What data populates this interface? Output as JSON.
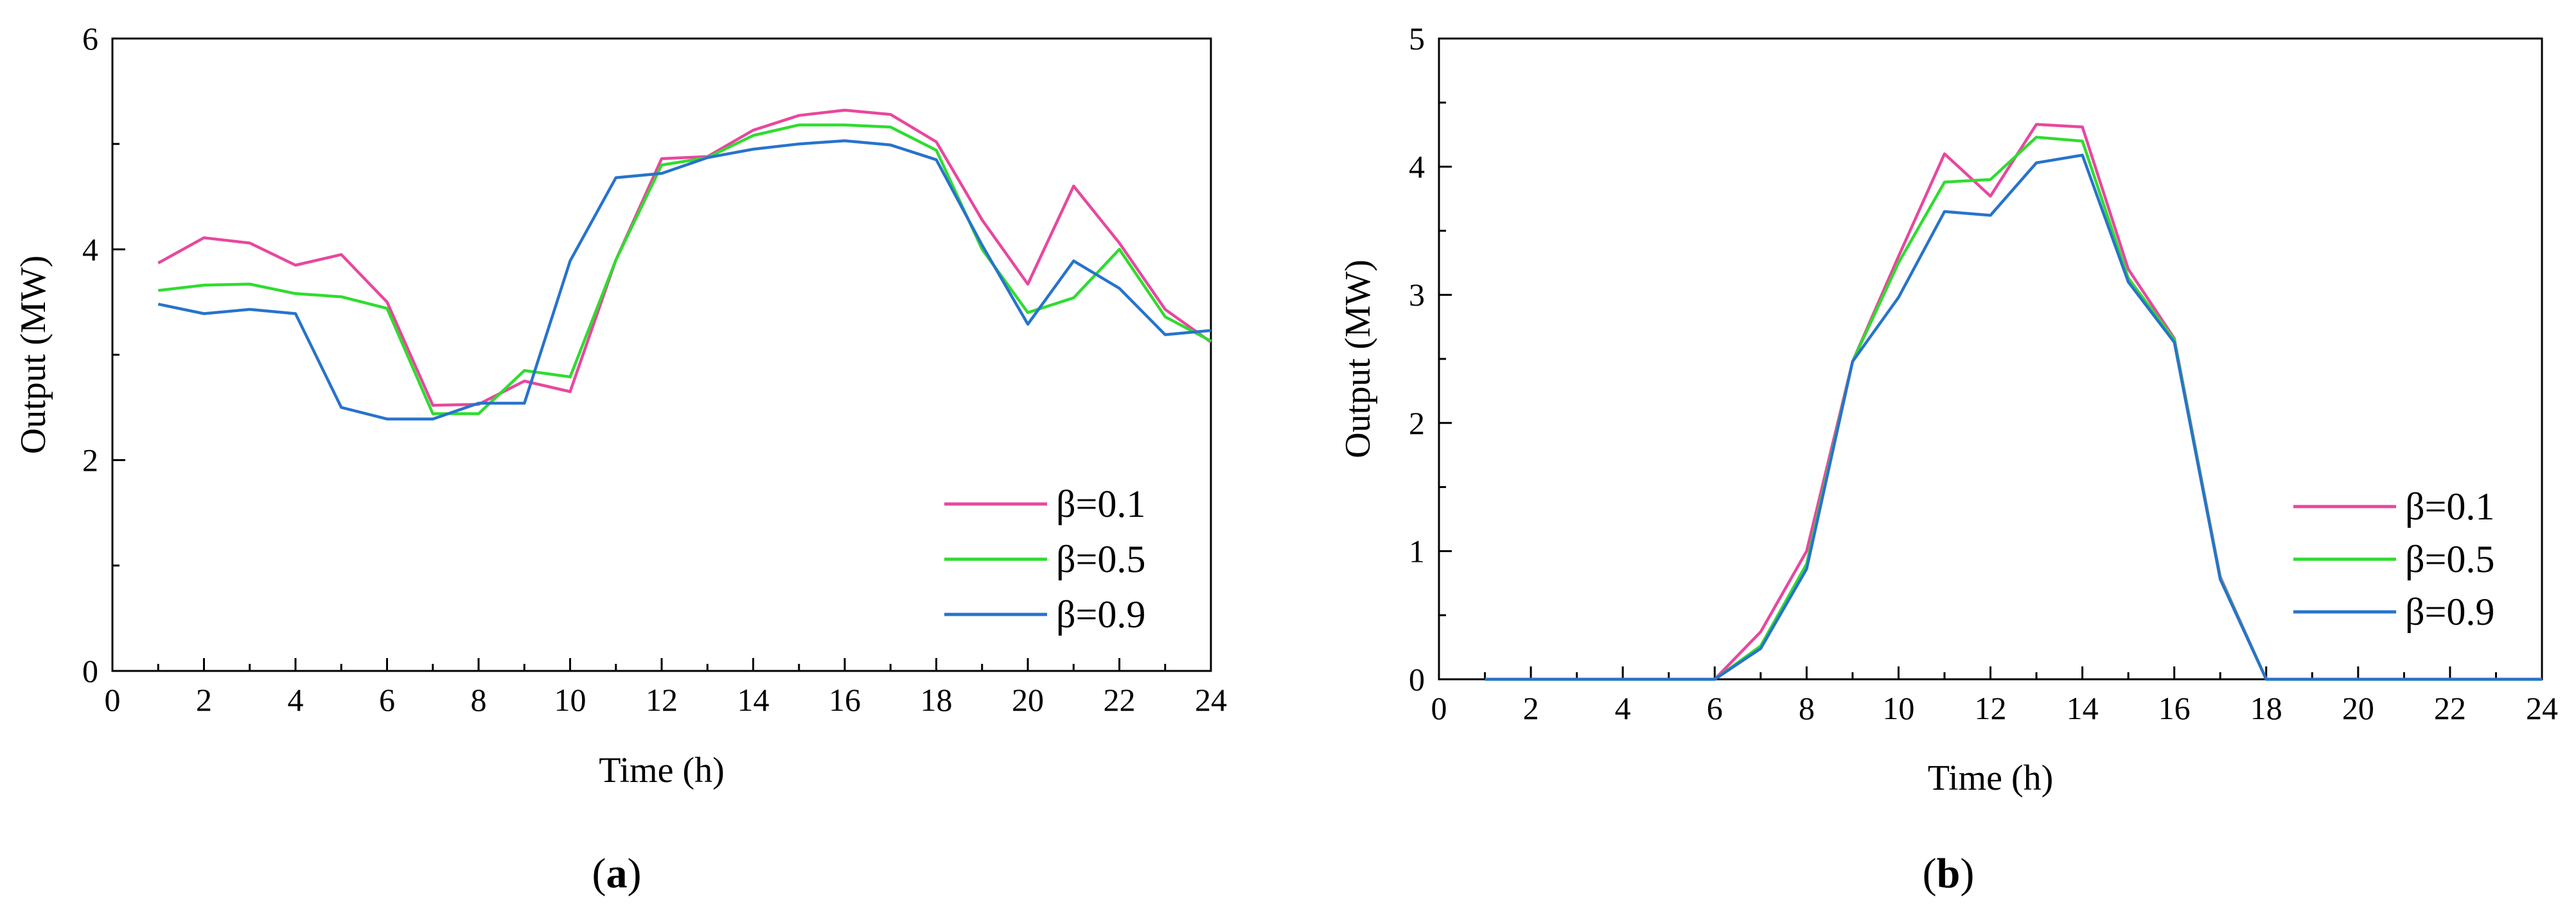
{
  "chart_data": [
    {
      "type": "line",
      "panel": "a",
      "xlabel": "Time (h)",
      "ylabel": "Output (MW)",
      "xlim": [
        0,
        24
      ],
      "ylim": [
        0,
        6
      ],
      "xticks": [
        0,
        2,
        4,
        6,
        8,
        10,
        12,
        14,
        16,
        18,
        20,
        22,
        24
      ],
      "yticks": [
        0,
        2,
        4,
        6
      ],
      "grid": false,
      "legend": "bottom-right",
      "x": [
        1,
        2,
        3,
        4,
        5,
        6,
        7,
        8,
        9,
        10,
        11,
        12,
        13,
        14,
        15,
        16,
        17,
        18,
        19,
        20,
        21,
        22,
        23,
        24
      ],
      "series": [
        {
          "name": "β=0.1",
          "color": "#e8479e",
          "values": [
            3.87,
            4.11,
            4.06,
            3.85,
            3.95,
            3.5,
            2.52,
            2.53,
            2.75,
            2.65,
            3.9,
            4.86,
            4.88,
            5.13,
            5.27,
            5.32,
            5.28,
            5.02,
            4.28,
            3.67,
            4.6,
            4.06,
            3.43,
            3.12
          ]
        },
        {
          "name": "β=0.5",
          "color": "#2fdc2f",
          "values": [
            3.61,
            3.66,
            3.67,
            3.58,
            3.55,
            3.44,
            2.44,
            2.44,
            2.85,
            2.79,
            3.9,
            4.8,
            4.87,
            5.08,
            5.18,
            5.18,
            5.16,
            4.94,
            4.0,
            3.4,
            3.54,
            4.0,
            3.36,
            3.13
          ]
        },
        {
          "name": "β=0.9",
          "color": "#2773cc",
          "values": [
            3.48,
            3.39,
            3.43,
            3.39,
            2.5,
            2.39,
            2.39,
            2.54,
            2.54,
            3.89,
            4.68,
            4.72,
            4.87,
            4.95,
            5.0,
            5.03,
            4.99,
            4.85,
            4.04,
            3.29,
            3.89,
            3.63,
            3.19,
            3.23
          ]
        }
      ]
    },
    {
      "type": "line",
      "panel": "b",
      "xlabel": "Time (h)",
      "ylabel": "Output (MW)",
      "xlim": [
        0,
        24
      ],
      "ylim": [
        0,
        5
      ],
      "xticks": [
        0,
        2,
        4,
        6,
        8,
        10,
        12,
        14,
        16,
        18,
        20,
        22,
        24
      ],
      "yticks": [
        0,
        1,
        2,
        3,
        4,
        5
      ],
      "grid": false,
      "legend": "bottom-right",
      "x": [
        1,
        2,
        3,
        4,
        5,
        6,
        7,
        8,
        9,
        10,
        11,
        12,
        13,
        14,
        15,
        16,
        17,
        18,
        19,
        20,
        21,
        22,
        23,
        24
      ],
      "series": [
        {
          "name": "β=0.1",
          "color": "#e8479e",
          "values": [
            0,
            0,
            0,
            0,
            0,
            0,
            0.37,
            1.0,
            2.48,
            3.3,
            4.1,
            3.77,
            4.33,
            4.31,
            3.2,
            2.66,
            0.8,
            0,
            0,
            0,
            0,
            0,
            0,
            0
          ]
        },
        {
          "name": "β=0.5",
          "color": "#2fdc2f",
          "values": [
            0,
            0,
            0,
            0,
            0,
            0,
            0.26,
            0.9,
            2.48,
            3.25,
            3.88,
            3.9,
            4.23,
            4.2,
            3.13,
            2.65,
            0.79,
            0,
            0,
            0,
            0,
            0,
            0,
            0
          ]
        },
        {
          "name": "β=0.9",
          "color": "#2773cc",
          "values": [
            0,
            0,
            0,
            0,
            0,
            0,
            0.24,
            0.86,
            2.48,
            2.98,
            3.65,
            3.62,
            4.03,
            4.09,
            3.1,
            2.63,
            0.78,
            0,
            0,
            0,
            0,
            0,
            0,
            0
          ]
        }
      ]
    }
  ],
  "panels": [
    {
      "open": "(",
      "letter": "a",
      "close": ")"
    },
    {
      "open": "(",
      "letter": "b",
      "close": ")"
    }
  ]
}
